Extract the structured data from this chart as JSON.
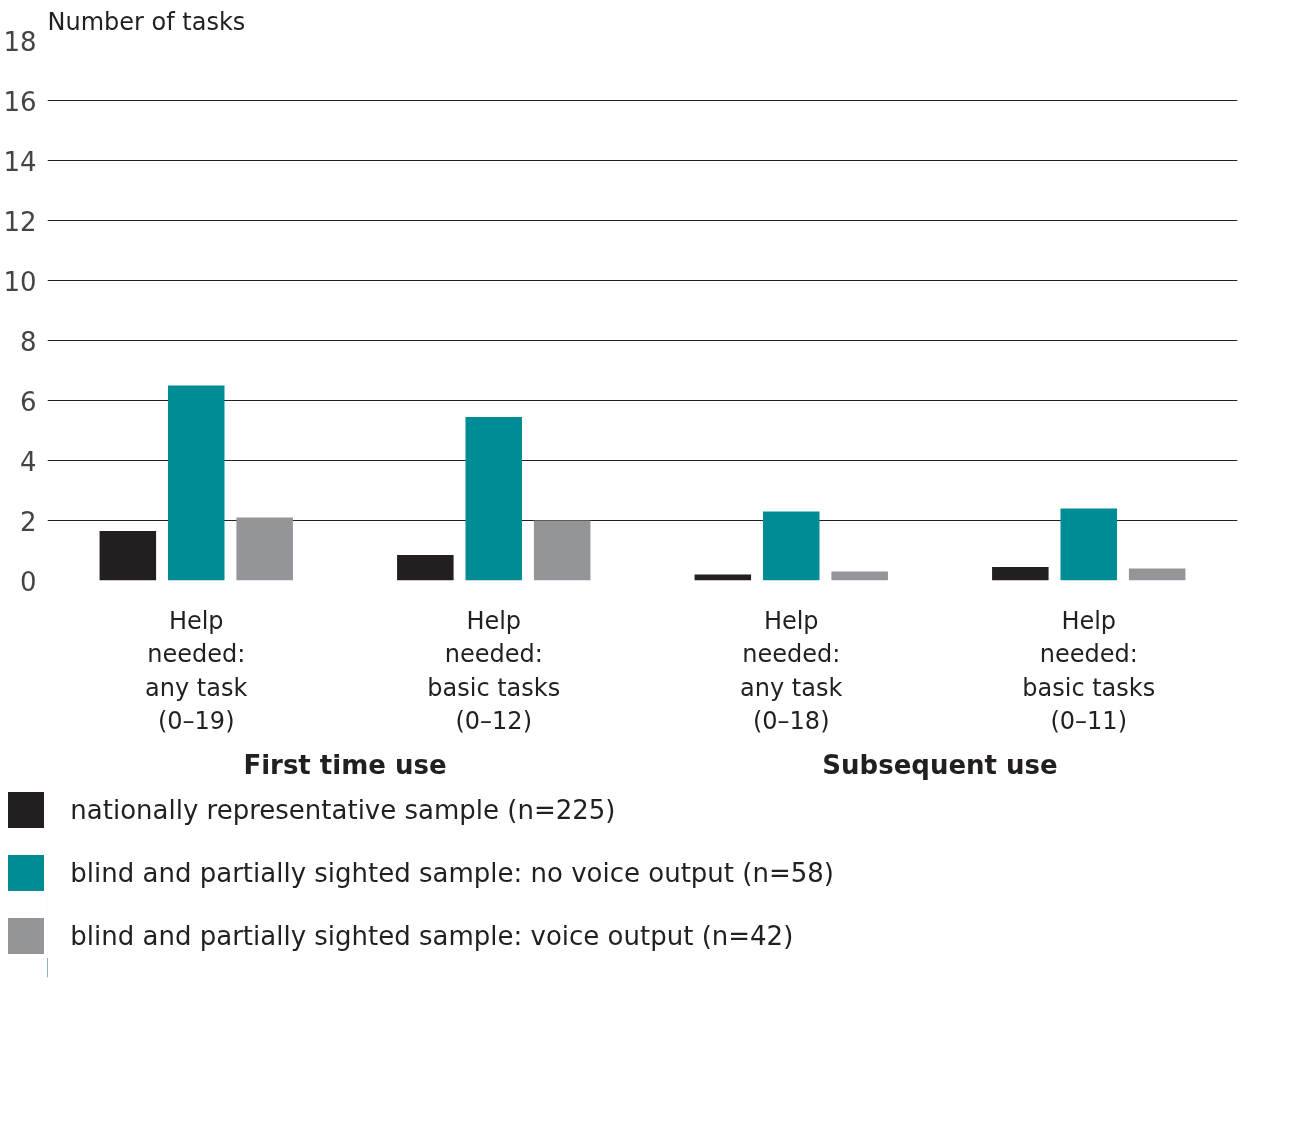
{
  "chart_data": {
    "type": "bar",
    "ylabel": "Number of tasks",
    "categories": [
      "Help\nneeded:\nany task\n(0–19)",
      "Help\nneeded:\nbasic tasks\n(0–12)",
      "Help\nneeded:\nany task\n(0–18)",
      "Help\nneeded:\nbasic tasks\n(0–11)"
    ],
    "series": [
      {
        "name": "nationally representative sample (n=225)",
        "color": "#231f20",
        "values": [
          1.65,
          0.85,
          0.2,
          0.45
        ]
      },
      {
        "name": "blind and partially sighted sample: no voice output (n=58)",
        "color": "#008c95",
        "values": [
          6.5,
          5.45,
          2.3,
          2.4
        ]
      },
      {
        "name": "blind and partially sighted sample: voice output (n=42)",
        "color": "#939598",
        "values": [
          2.1,
          2.0,
          0.3,
          0.4
        ]
      }
    ],
    "annotations": [
      "First time use",
      "Subsequent use"
    ],
    "ylim": [
      0,
      18
    ],
    "yticks": [
      0,
      2,
      4,
      6,
      8,
      10,
      12,
      14,
      16,
      18
    ],
    "grid": "y",
    "legend": "bottom left"
  }
}
